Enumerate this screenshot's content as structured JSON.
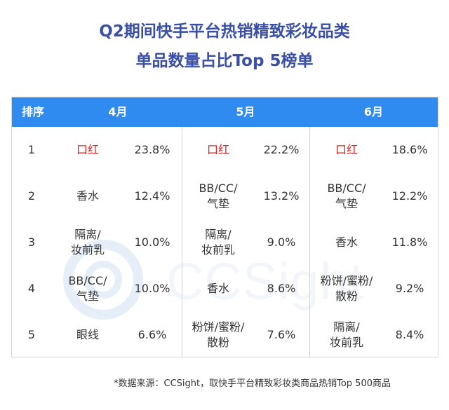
{
  "title_line1": "Q2期间快手平台热销精致彩妆品类",
  "title_line2": "单品数量占比Top 5榜单",
  "table": {
    "headers": {
      "rank": "排序",
      "m4": "4月",
      "m5": "5月",
      "m6": "6月"
    },
    "ranks": [
      "1",
      "2",
      "3",
      "4",
      "5"
    ],
    "months": [
      {
        "month": "4月",
        "rows": [
          {
            "name": "口红",
            "value": "23.8%"
          },
          {
            "name": "香水",
            "value": "12.4%"
          },
          {
            "name": "隔离/\n妆前乳",
            "value": "10.0%"
          },
          {
            "name": "BB/CC/\n气垫",
            "value": "10.0%"
          },
          {
            "name": "眼线",
            "value": "6.6%"
          }
        ]
      },
      {
        "month": "5月",
        "rows": [
          {
            "name": "口红",
            "value": "22.2%"
          },
          {
            "name": "BB/CC/\n气垫",
            "value": "13.2%"
          },
          {
            "name": "隔离/\n妆前乳",
            "value": "9.0%"
          },
          {
            "name": "香水",
            "value": "8.6%"
          },
          {
            "name": "粉饼/蜜粉/\n散粉",
            "value": "7.6%"
          }
        ]
      },
      {
        "month": "6月",
        "rows": [
          {
            "name": "口红",
            "value": "18.6%"
          },
          {
            "name": "BB/CC/\n气垫",
            "value": "12.2%"
          },
          {
            "name": "香水",
            "value": "11.8%"
          },
          {
            "name": "粉饼/蜜粉/\n散粉",
            "value": "9.2%"
          },
          {
            "name": "隔离/\n妆前乳",
            "value": "8.4%"
          }
        ]
      }
    ]
  },
  "highlight_item": "口红",
  "colors": {
    "title": "#3a4fa6",
    "header_bg": "#2f8bf0",
    "highlight": "#e02020",
    "text": "#333333"
  },
  "watermark": "CCSight",
  "footer": "*数据来源：CCSight，取快手平台精致彩妆类商品热销Top 500商品",
  "chart_data": {
    "type": "table",
    "title": "Q2期间快手平台热销精致彩妆品类单品数量占比Top 5榜单",
    "columns": [
      "排序",
      "4月",
      "5月",
      "6月"
    ],
    "series": [
      {
        "name": "4月",
        "categories": [
          "口红",
          "香水",
          "隔离/妆前乳",
          "BB/CC/气垫",
          "眼线"
        ],
        "values": [
          23.8,
          12.4,
          10.0,
          10.0,
          6.6
        ]
      },
      {
        "name": "5月",
        "categories": [
          "口红",
          "BB/CC/气垫",
          "隔离/妆前乳",
          "香水",
          "粉饼/蜜粉/散粉"
        ],
        "values": [
          22.2,
          13.2,
          9.0,
          8.6,
          7.6
        ]
      },
      {
        "name": "6月",
        "categories": [
          "口红",
          "BB/CC/气垫",
          "香水",
          "粉饼/蜜粉/散粉",
          "隔离/妆前乳"
        ],
        "values": [
          18.6,
          12.2,
          11.8,
          9.2,
          8.4
        ]
      }
    ],
    "unit": "%"
  }
}
